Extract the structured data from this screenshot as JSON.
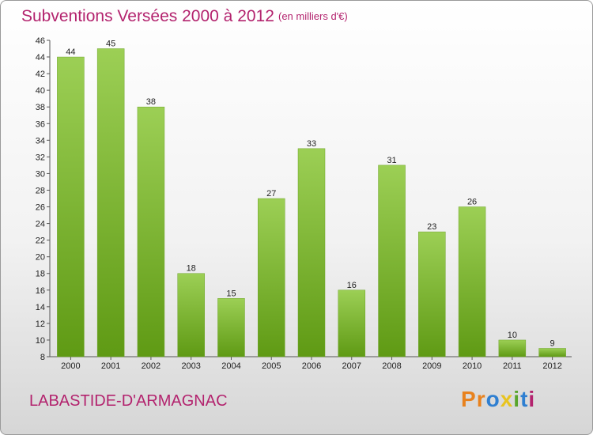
{
  "title": "Subventions Versées 2000 à 2012",
  "subtitle": "(en milliers d'€)",
  "commune": "LABASTIDE-D'ARMAGNAC",
  "logo": {
    "letters": [
      "P",
      "r",
      "o",
      "x",
      "i",
      "t",
      "i"
    ],
    "colors": [
      "#e8821e",
      "#e8821e",
      "#2f7fd1",
      "#e8c420",
      "#59a52c",
      "#2f7fd1",
      "#b3236e"
    ]
  },
  "colors": {
    "accent": "#b3236e",
    "bar_top": "#9ccf55",
    "bar_bottom": "#5f9a14"
  },
  "chart_data": {
    "type": "bar",
    "categories": [
      "2000",
      "2001",
      "2002",
      "2003",
      "2004",
      "2005",
      "2006",
      "2007",
      "2008",
      "2009",
      "2010",
      "2011",
      "2012"
    ],
    "values": [
      44,
      45,
      38,
      18,
      15,
      27,
      33,
      16,
      31,
      23,
      26,
      10,
      9
    ],
    "data_labels": [
      "44",
      "45",
      "38",
      "18",
      "15",
      "27",
      "33",
      "16",
      "31",
      "23",
      "26",
      "10",
      "9"
    ],
    "title": "Subventions Versées 2000 à 2012",
    "xlabel": "",
    "ylabel": "",
    "ylim": [
      8,
      46
    ],
    "yticks": [
      8,
      10,
      12,
      14,
      16,
      18,
      20,
      22,
      24,
      26,
      28,
      30,
      32,
      34,
      36,
      38,
      40,
      42,
      44,
      46
    ],
    "grid": false,
    "legend": "none"
  }
}
